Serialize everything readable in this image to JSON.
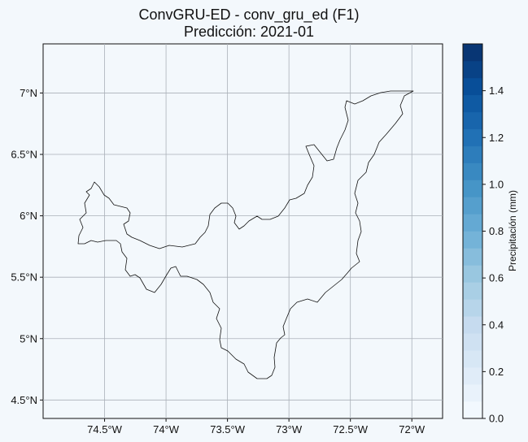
{
  "title": "ConvGRU-ED - conv_gru_ed (F1)",
  "subtitle": "Predicción: 2021-01",
  "map": {
    "lon_ticks": [
      "74.5°W",
      "74°W",
      "73.5°W",
      "73°W",
      "72.5°W",
      "72°W"
    ],
    "lat_ticks": [
      "7°N",
      "6.5°N",
      "6°N",
      "5.5°N",
      "5°N",
      "4.5°N"
    ],
    "lon_values": [
      -74.5,
      -74.0,
      -73.5,
      -73.0,
      -72.5,
      -72.0
    ],
    "lat_values": [
      7.0,
      6.5,
      6.0,
      5.5,
      5.0,
      4.5
    ],
    "lon_range": [
      -75.0,
      -71.75
    ],
    "lat_range": [
      4.35,
      7.4
    ],
    "gridlines": true,
    "field_color": "#f3f8fc",
    "outline_color": "#111111"
  },
  "colorbar": {
    "label": "Precipitación (mm)",
    "ticks": [
      "0.0",
      "0.2",
      "0.4",
      "0.6",
      "0.8",
      "1.0",
      "1.2",
      "1.4"
    ],
    "tick_values": [
      0.0,
      0.2,
      0.4,
      0.6,
      0.8,
      1.0,
      1.2,
      1.4
    ],
    "range": [
      0.0,
      1.6
    ],
    "levels": 22,
    "cmap": "Blues",
    "colors": [
      "#f7fbff",
      "#deebf7",
      "#c6dbef",
      "#9ecae1",
      "#6baed6",
      "#4292c6",
      "#2171b5",
      "#08519c",
      "#08306b"
    ]
  }
}
